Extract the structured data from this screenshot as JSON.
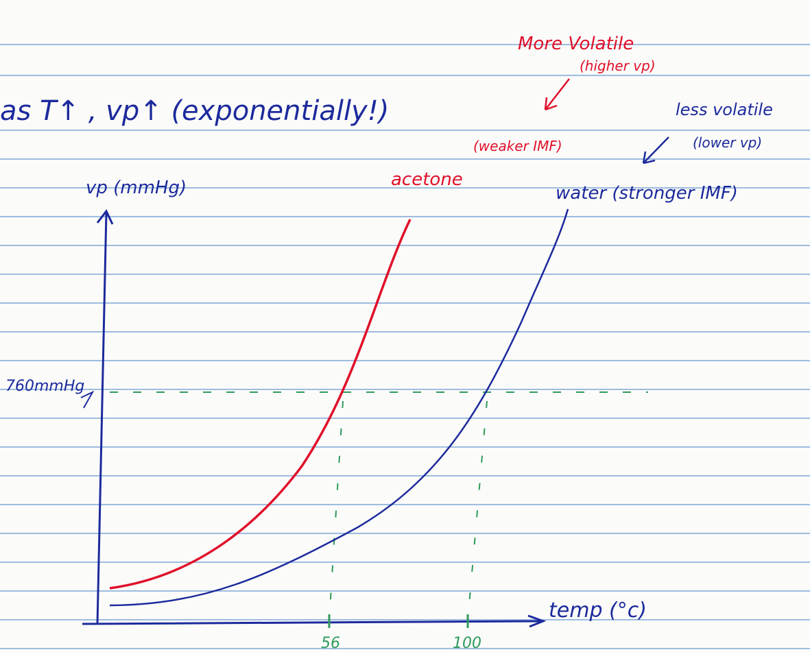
{
  "heading": "as T↑ , vp↑ (exponentially!)",
  "notes": {
    "more_volatile": "More Volatile",
    "higher_vp": "(higher vp)",
    "weaker_imf": "(weaker IMF)",
    "less_volatile": "less volatile",
    "lower_vp": "(lower vp)"
  },
  "axes": {
    "y_label": "vp (mmHg)",
    "x_label": "temp (°c)",
    "y_mark": "760mmHg",
    "x_mark_acetone": "56",
    "x_mark_water": "100"
  },
  "curves": {
    "acetone": "acetone",
    "water": "water (stronger IMF)"
  }
}
